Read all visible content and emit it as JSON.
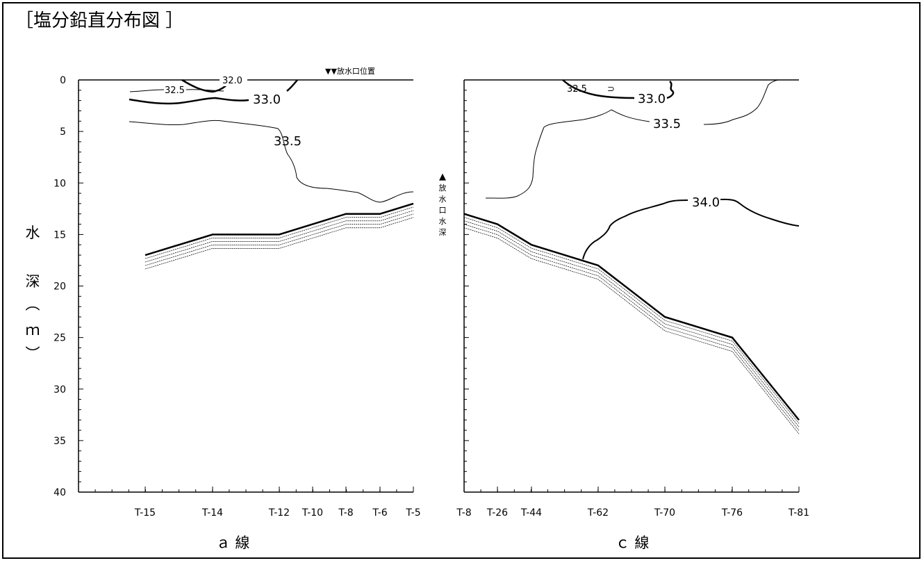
{
  "page": {
    "title": "［塩分鉛直分布図 ］"
  },
  "chart_data": [
    {
      "type": "line",
      "panel": "a",
      "xlabel": "ａ 線",
      "ylabel_chars": [
        "水",
        "深",
        "︵",
        "ｍ",
        "︶"
      ],
      "y_ticks": [
        0,
        5,
        10,
        15,
        20,
        25,
        30,
        35,
        40
      ],
      "ylim": [
        0,
        40
      ],
      "y_inverted": true,
      "stations": [
        "T-15",
        "T-14",
        "T-12",
        "T-10",
        "T-8",
        "T-6",
        "T-5"
      ],
      "outfall_marker": "▼▼放水口位置",
      "seabed": {
        "name": "",
        "stations": [
          "T-15",
          "T-14",
          "T-12",
          "T-8",
          "T-6",
          "T-5"
        ],
        "depth": [
          17,
          15,
          15,
          13,
          13,
          12
        ]
      },
      "contour_labels": [
        "32.0",
        "32.5",
        "33.0",
        "33.5"
      ]
    },
    {
      "type": "line",
      "panel": "c",
      "xlabel": "ｃ 線",
      "ylim": [
        0,
        40
      ],
      "y_inverted": true,
      "stations": [
        "T-8",
        "T-26",
        "T-44",
        "T-62",
        "T-70",
        "T-76",
        "T-81"
      ],
      "outfall_depth_marker": [
        "▲",
        "放",
        "水",
        "口",
        "水",
        "深"
      ],
      "seabed": {
        "name": "",
        "stations": [
          "T-8",
          "T-26",
          "T-44",
          "T-62",
          "T-70",
          "T-76",
          "T-81"
        ],
        "depth": [
          13,
          14,
          16,
          18,
          23,
          25,
          33
        ]
      },
      "contour_labels": [
        "32.5",
        "33.0",
        "33.5",
        "34.0"
      ]
    }
  ]
}
